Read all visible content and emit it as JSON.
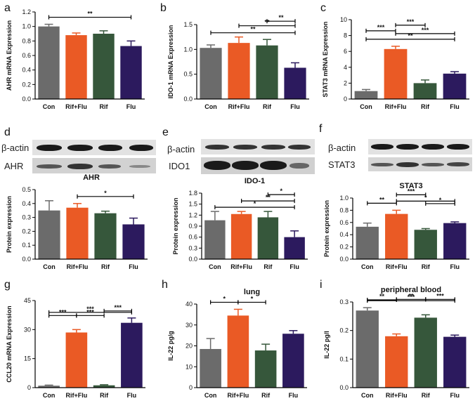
{
  "colors": {
    "Con": "#6b6b6b",
    "Rif+Flu": "#ea5a25",
    "Rif": "#36573b",
    "Flu": "#2c1a5e",
    "axis": "#000000"
  },
  "blots": {
    "d": {
      "top_label": "β-actin",
      "bottom_label": "AHR"
    },
    "e": {
      "top_label": "β-actin",
      "bottom_label": "IDO1"
    },
    "f": {
      "top_label": "β-actin",
      "bottom_label": "STAT3"
    }
  },
  "chart_data": [
    {
      "panel": "a",
      "type": "bar",
      "title": "",
      "ylabel": "AHR mRNA Expression",
      "xlabel": "",
      "categories": [
        "Con",
        "Rif+Flu",
        "Rif",
        "Flu"
      ],
      "values": [
        1.0,
        0.88,
        0.9,
        0.73
      ],
      "errors": [
        0.03,
        0.03,
        0.04,
        0.07
      ],
      "ylim": [
        0,
        1.2
      ],
      "yticks": [
        "0.0",
        "0.2",
        "0.4",
        "0.6",
        "0.8",
        "1.0",
        "1.2"
      ],
      "significance": [
        {
          "from": 0,
          "to": 3,
          "label": "**"
        }
      ]
    },
    {
      "panel": "b",
      "type": "bar",
      "title": "",
      "ylabel": "IDO-1 mRNA Expression",
      "xlabel": "",
      "categories": [
        "Con",
        "Rif+Flu",
        "Rif",
        "Flu"
      ],
      "values": [
        1.03,
        1.13,
        1.08,
        0.63
      ],
      "errors": [
        0.06,
        0.12,
        0.12,
        0.1
      ],
      "ylim": [
        0,
        1.5
      ],
      "yticks": [
        "0.0",
        "0.5",
        "1.0",
        "1.5"
      ],
      "significance": [
        {
          "from": 0,
          "to": 3,
          "label": "**"
        },
        {
          "from": 1,
          "to": 3,
          "label": "**"
        },
        {
          "from": 2,
          "to": 3,
          "label": "**"
        }
      ]
    },
    {
      "panel": "c",
      "type": "bar",
      "title": "",
      "ylabel": "STAT3 mRNA Expression",
      "xlabel": "",
      "categories": [
        "Con",
        "Rif+Flu",
        "Rif",
        "Flu"
      ],
      "values": [
        1.0,
        6.3,
        2.0,
        3.2
      ],
      "errors": [
        0.2,
        0.35,
        0.4,
        0.25
      ],
      "ylim": [
        0,
        10
      ],
      "yticks": [
        "0",
        "2",
        "4",
        "6",
        "8",
        "10"
      ],
      "significance": [
        {
          "from": 0,
          "to": 3,
          "label": "**"
        },
        {
          "from": 0,
          "to": 1,
          "label": "***"
        },
        {
          "from": 1,
          "to": 3,
          "label": "***"
        },
        {
          "from": 1,
          "to": 2,
          "label": "***"
        }
      ]
    },
    {
      "panel": "d",
      "type": "bar",
      "title": "AHR",
      "ylabel": "Protein expression",
      "xlabel": "",
      "categories": [
        "Con",
        "Rif+Flu",
        "Rif",
        "Flu"
      ],
      "values": [
        0.35,
        0.37,
        0.33,
        0.25
      ],
      "errors": [
        0.07,
        0.03,
        0.015,
        0.045
      ],
      "ylim": [
        0,
        0.5
      ],
      "yticks": [
        "0.0",
        "0.1",
        "0.2",
        "0.3",
        "0.4",
        "0.5"
      ],
      "significance": [
        {
          "from": 1,
          "to": 3,
          "label": "*"
        }
      ]
    },
    {
      "panel": "e",
      "type": "bar",
      "title": "IDO-1",
      "ylabel": "Protein expression",
      "xlabel": "",
      "categories": [
        "Con",
        "Rif+Flu",
        "Rif",
        "Flu"
      ],
      "values": [
        1.06,
        1.23,
        1.14,
        0.6
      ],
      "errors": [
        0.24,
        0.07,
        0.16,
        0.17
      ],
      "ylim": [
        0,
        1.8
      ],
      "yticks": [
        "0.0",
        "0.3",
        "0.6",
        "0.9",
        "1.2",
        "1.5",
        "1.8"
      ],
      "significance": [
        {
          "from": 0,
          "to": 3,
          "label": "*"
        },
        {
          "from": 1,
          "to": 3,
          "label": "**"
        },
        {
          "from": 2,
          "to": 3,
          "label": "*"
        }
      ]
    },
    {
      "panel": "f",
      "type": "bar",
      "title": "STAT3",
      "ylabel": "Protein expression",
      "xlabel": "",
      "categories": [
        "Con",
        "Rif+Flu",
        "Rif",
        "Flu"
      ],
      "values": [
        0.53,
        0.74,
        0.48,
        0.59
      ],
      "errors": [
        0.06,
        0.06,
        0.02,
        0.02
      ],
      "ylim": [
        0,
        1.0
      ],
      "yticks": [
        "0.0",
        "0.2",
        "0.4",
        "0.6",
        "0.8",
        "1.0"
      ],
      "significance": [
        {
          "from": 0,
          "to": 1,
          "label": "**"
        },
        {
          "from": 1,
          "to": 3,
          "label": "*"
        },
        {
          "from": 1,
          "to": 2,
          "label": "***"
        },
        {
          "from": 2,
          "to": 3,
          "label": "*"
        }
      ]
    },
    {
      "panel": "g",
      "type": "bar",
      "title": "",
      "ylabel": "CCL20 mRNA Expression",
      "xlabel": "",
      "categories": [
        "Con",
        "Rif+Flu",
        "Rif",
        "Flu"
      ],
      "values": [
        1,
        28.5,
        1.2,
        33.5
      ],
      "errors": [
        0.3,
        1.5,
        0.3,
        2.5
      ],
      "ylim": [
        0,
        45
      ],
      "yticks": [
        "0",
        "15",
        "30",
        "45"
      ],
      "significance": [
        {
          "from": 0,
          "to": 3,
          "label": "***"
        },
        {
          "from": 2,
          "to": 3,
          "label": "***"
        },
        {
          "from": 0,
          "to": 1,
          "label": "***"
        },
        {
          "from": 1,
          "to": 2,
          "label": "***"
        }
      ]
    },
    {
      "panel": "h",
      "type": "bar",
      "title": "lung",
      "ylabel": "IL-22 pg/g",
      "xlabel": "",
      "categories": [
        "Con",
        "Rif+Flu",
        "Rif",
        "Flu"
      ],
      "values": [
        18.5,
        34.5,
        17.8,
        25.8
      ],
      "errors": [
        5.0,
        3.0,
        3.0,
        1.5
      ],
      "ylim": [
        0,
        40
      ],
      "yticks": [
        "0",
        "10",
        "20",
        "30",
        "40"
      ],
      "significance": [
        {
          "from": 0,
          "to": 1,
          "label": "*"
        },
        {
          "from": 1,
          "to": 2,
          "label": "*"
        }
      ]
    },
    {
      "panel": "i",
      "type": "bar",
      "title": "peripheral blood",
      "ylabel": "IL-22 pg/l",
      "xlabel": "",
      "categories": [
        "Con",
        "Rif+Flu",
        "Rif",
        "Flu"
      ],
      "values": [
        0.27,
        0.18,
        0.245,
        0.178
      ],
      "errors": [
        0.01,
        0.008,
        0.01,
        0.006
      ],
      "ylim": [
        0,
        0.3
      ],
      "yticks": [
        "0.0",
        "0.1",
        "0.2",
        "0.3"
      ],
      "significance": [
        {
          "from": 0,
          "to": 3,
          "label": "***"
        },
        {
          "from": 0,
          "to": 1,
          "label": "**"
        },
        {
          "from": 1,
          "to": 2,
          "label": "**"
        },
        {
          "from": 2,
          "to": 3,
          "label": "***"
        }
      ]
    }
  ]
}
